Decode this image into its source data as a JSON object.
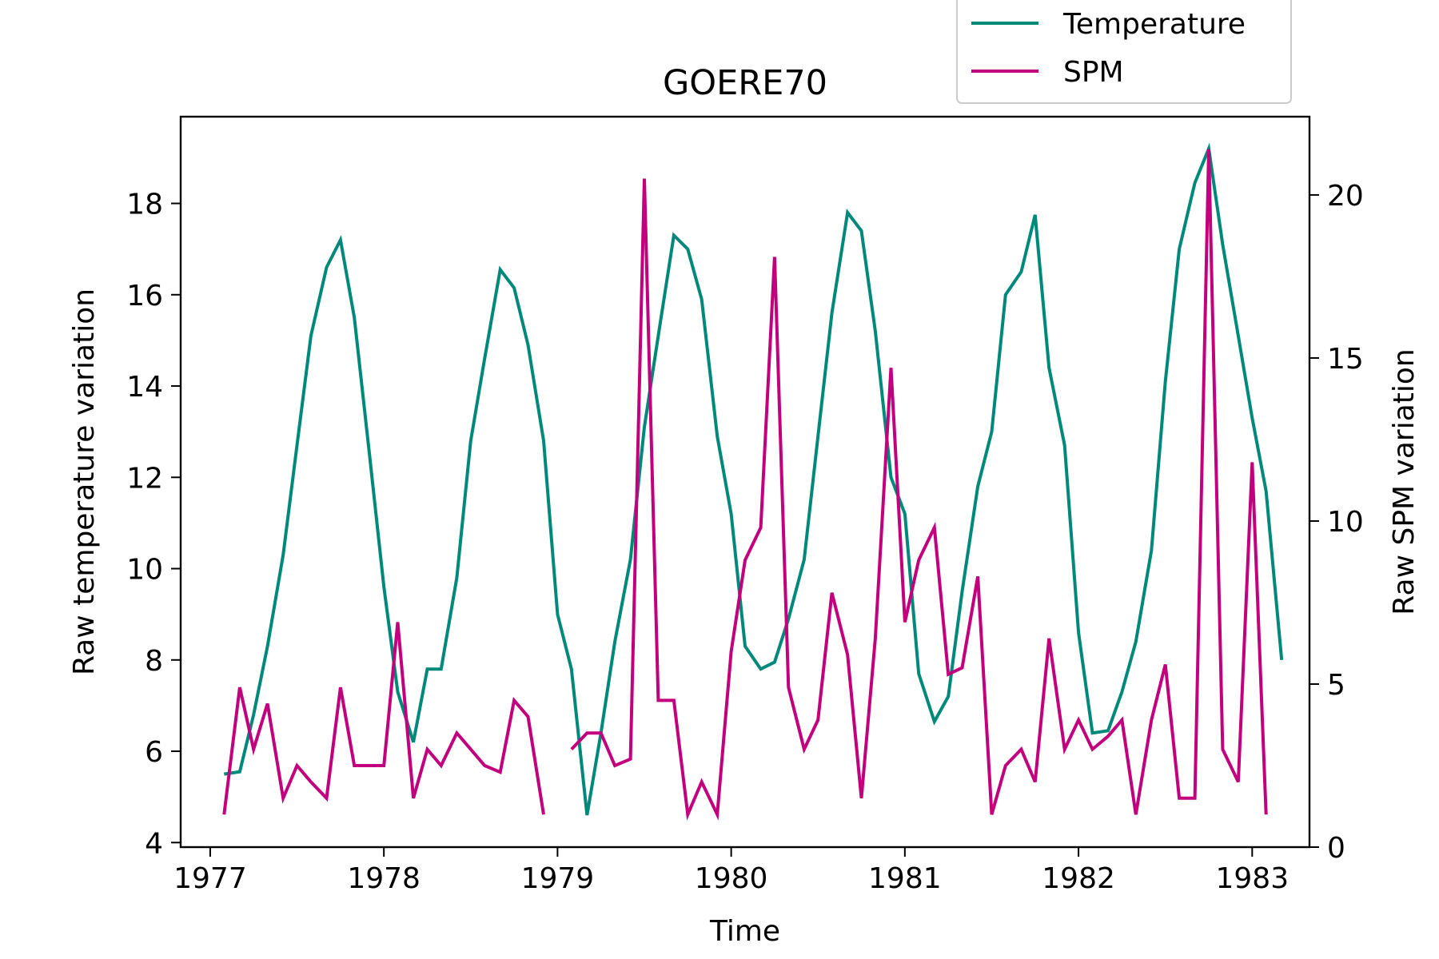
{
  "chart_data": {
    "type": "line",
    "title": "GOERE70",
    "xlabel": "Time",
    "ylabel_left": "Raw temperature variation",
    "ylabel_right": "Raw SPM variation",
    "x_ticks": [
      "1977",
      "1978",
      "1979",
      "1980",
      "1981",
      "1982",
      "1983"
    ],
    "y_left_ticks": [
      "4",
      "6",
      "8",
      "10",
      "12",
      "14",
      "16",
      "18"
    ],
    "y_right_ticks": [
      "0",
      "5",
      "10",
      "15",
      "20"
    ],
    "xlim": [
      1976.83,
      1983.33
    ],
    "ylim_left": [
      3.9,
      19.9
    ],
    "ylim_right": [
      0,
      22.4
    ],
    "grid": false,
    "legend_placement": "top-right, above plot",
    "colors": {
      "temperature": "#00897B",
      "spm": "#C2007E"
    },
    "series": [
      {
        "name": "Temperature",
        "axis": "left",
        "points": [
          [
            1977.08,
            5.5
          ],
          [
            1977.17,
            5.55
          ],
          [
            1977.25,
            6.8
          ],
          [
            1977.33,
            8.3
          ],
          [
            1977.42,
            10.3
          ],
          [
            1977.5,
            12.7
          ],
          [
            1977.58,
            15.1
          ],
          [
            1977.67,
            16.6
          ],
          [
            1977.75,
            17.2
          ],
          [
            1977.83,
            15.5
          ],
          [
            1977.92,
            12.4
          ],
          [
            1978.0,
            9.6
          ],
          [
            1978.08,
            7.3
          ],
          [
            1978.17,
            6.2
          ],
          [
            1978.25,
            7.8
          ],
          [
            1978.33,
            7.8
          ],
          [
            1978.42,
            9.8
          ],
          [
            1978.5,
            12.8
          ],
          [
            1978.58,
            14.6
          ],
          [
            1978.67,
            16.55
          ],
          [
            1978.75,
            16.15
          ],
          [
            1978.83,
            14.9
          ],
          [
            1978.92,
            12.8
          ],
          [
            1979.0,
            9.0
          ],
          [
            1979.08,
            7.8
          ],
          [
            1979.17,
            4.6
          ],
          [
            1979.25,
            6.4
          ],
          [
            1979.33,
            8.4
          ],
          [
            1979.42,
            10.2
          ],
          [
            1979.5,
            13.1
          ],
          [
            1979.58,
            15.1
          ],
          [
            1979.67,
            17.3
          ],
          [
            1979.75,
            17.0
          ],
          [
            1979.83,
            15.9
          ],
          [
            1979.92,
            12.9
          ],
          [
            1980.0,
            11.2
          ],
          [
            1980.08,
            8.3
          ],
          [
            1980.17,
            7.8
          ],
          [
            1980.25,
            7.95
          ],
          [
            1980.33,
            8.9
          ],
          [
            1980.42,
            10.2
          ],
          [
            1980.5,
            12.9
          ],
          [
            1980.58,
            15.6
          ],
          [
            1980.67,
            17.8
          ],
          [
            1980.75,
            17.4
          ],
          [
            1980.83,
            15.2
          ],
          [
            1980.92,
            12.0
          ],
          [
            1981.0,
            11.2
          ],
          [
            1981.08,
            7.7
          ],
          [
            1981.17,
            6.65
          ],
          [
            1981.25,
            7.2
          ],
          [
            1981.33,
            9.5
          ],
          [
            1981.42,
            11.8
          ],
          [
            1981.5,
            13.0
          ],
          [
            1981.58,
            16.0
          ],
          [
            1981.67,
            16.5
          ],
          [
            1981.75,
            17.75
          ],
          [
            1981.83,
            14.4
          ],
          [
            1981.92,
            12.7
          ],
          [
            1982.0,
            8.6
          ],
          [
            1982.08,
            6.4
          ],
          [
            1982.17,
            6.45
          ],
          [
            1982.25,
            7.3
          ],
          [
            1982.33,
            8.4
          ],
          [
            1982.42,
            10.4
          ],
          [
            1982.5,
            14.1
          ],
          [
            1982.58,
            17.0
          ],
          [
            1982.67,
            18.45
          ],
          [
            1982.75,
            19.2
          ],
          [
            1982.83,
            17.1
          ],
          [
            1982.92,
            15.1
          ],
          [
            1983.0,
            13.3
          ],
          [
            1983.08,
            11.7
          ],
          [
            1983.17,
            8.0
          ]
        ]
      },
      {
        "name": "SPM",
        "axis": "right",
        "points": [
          [
            1977.08,
            1.0
          ],
          [
            1977.17,
            4.9
          ],
          [
            1977.25,
            3.0
          ],
          [
            1977.33,
            4.4
          ],
          [
            1977.42,
            1.5
          ],
          [
            1977.5,
            2.5
          ],
          [
            1977.58,
            2.0
          ],
          [
            1977.67,
            1.5
          ],
          [
            1977.75,
            4.9
          ],
          [
            1977.83,
            2.5
          ],
          [
            1977.92,
            2.5
          ],
          [
            1978.0,
            2.5
          ],
          [
            1978.08,
            6.9
          ],
          [
            1978.17,
            1.5
          ],
          [
            1978.25,
            3.0
          ],
          [
            1978.33,
            2.5
          ],
          [
            1978.42,
            3.5
          ],
          [
            1978.5,
            3.0
          ],
          [
            1978.58,
            2.5
          ],
          [
            1978.67,
            2.3
          ],
          [
            1978.75,
            4.5
          ],
          [
            1978.83,
            4.0
          ],
          [
            1978.92,
            1.0
          ],
          null,
          [
            1979.08,
            3.0
          ],
          [
            1979.17,
            3.5
          ],
          [
            1979.25,
            3.5
          ],
          [
            1979.33,
            2.5
          ],
          [
            1979.42,
            2.7
          ],
          [
            1979.5,
            20.5
          ],
          [
            1979.58,
            4.5
          ],
          [
            1979.67,
            4.5
          ],
          [
            1979.75,
            1.0
          ],
          [
            1979.83,
            2.0
          ],
          [
            1979.92,
            1.0
          ],
          [
            1980.0,
            6.0
          ],
          [
            1980.08,
            8.8
          ],
          [
            1980.17,
            9.8
          ],
          [
            1980.25,
            18.1
          ],
          [
            1980.33,
            4.9
          ],
          [
            1980.42,
            3.0
          ],
          [
            1980.5,
            3.9
          ],
          [
            1980.58,
            7.8
          ],
          [
            1980.67,
            5.9
          ],
          [
            1980.75,
            1.5
          ],
          [
            1980.83,
            6.4
          ],
          [
            1980.92,
            14.7
          ],
          [
            1981.0,
            6.9
          ],
          [
            1981.08,
            8.8
          ],
          [
            1981.17,
            9.8
          ],
          [
            1981.25,
            5.3
          ],
          [
            1981.33,
            5.5
          ],
          [
            1981.42,
            8.3
          ],
          [
            1981.5,
            1.0
          ],
          [
            1981.58,
            2.5
          ],
          [
            1981.67,
            3.0
          ],
          [
            1981.75,
            2.0
          ],
          [
            1981.83,
            6.4
          ],
          [
            1981.92,
            3.0
          ],
          [
            1982.0,
            3.9
          ],
          [
            1982.08,
            3.0
          ],
          [
            1982.17,
            3.4
          ],
          [
            1982.25,
            3.9
          ],
          [
            1982.33,
            1.0
          ],
          [
            1982.42,
            3.9
          ],
          [
            1982.5,
            5.6
          ],
          [
            1982.58,
            1.5
          ],
          [
            1982.67,
            1.5
          ],
          [
            1982.75,
            21.4
          ],
          [
            1982.83,
            3.0
          ],
          [
            1982.92,
            2.0
          ],
          [
            1983.0,
            11.8
          ],
          [
            1983.08,
            1.0
          ]
        ]
      }
    ]
  }
}
